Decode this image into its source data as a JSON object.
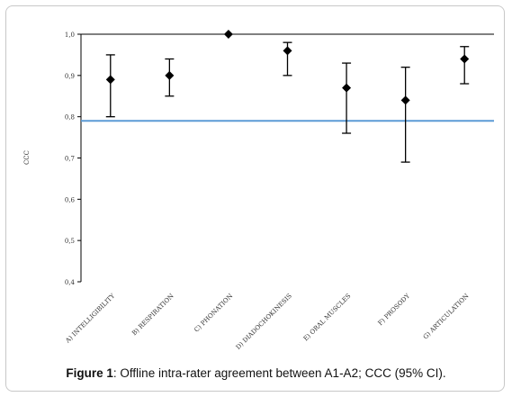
{
  "caption": {
    "label": "Figure 1",
    "text": ": Offline intra-rater agreement between A1-A2; CCC (95% CI)."
  },
  "chart_data": {
    "type": "scatter",
    "title": "",
    "xlabel": "",
    "ylabel": "CCC",
    "ylim": [
      0.4,
      1.0
    ],
    "yticks": [
      "0,4",
      "0,5",
      "0,6",
      "0,7",
      "0,8",
      "0,9",
      "1,0"
    ],
    "categories": [
      "A) INTELLIGIBILITY",
      "B) RESPIRATION",
      "C) PHONATION",
      "D) DIADOCHOKINESIS",
      "E) ORAL MUSCLES",
      "F) PROSODY",
      "G) ARTICULATION"
    ],
    "values": [
      0.89,
      0.9,
      1.0,
      0.96,
      0.87,
      0.84,
      0.94
    ],
    "ci_lower": [
      0.8,
      0.85,
      1.0,
      0.9,
      0.76,
      0.69,
      0.88
    ],
    "ci_upper": [
      0.95,
      0.94,
      1.0,
      0.98,
      0.93,
      0.92,
      0.97
    ],
    "reference_line": 0.79,
    "colors": {
      "marker": "#000000",
      "reference": "#5b9bd5"
    },
    "grid": false
  }
}
